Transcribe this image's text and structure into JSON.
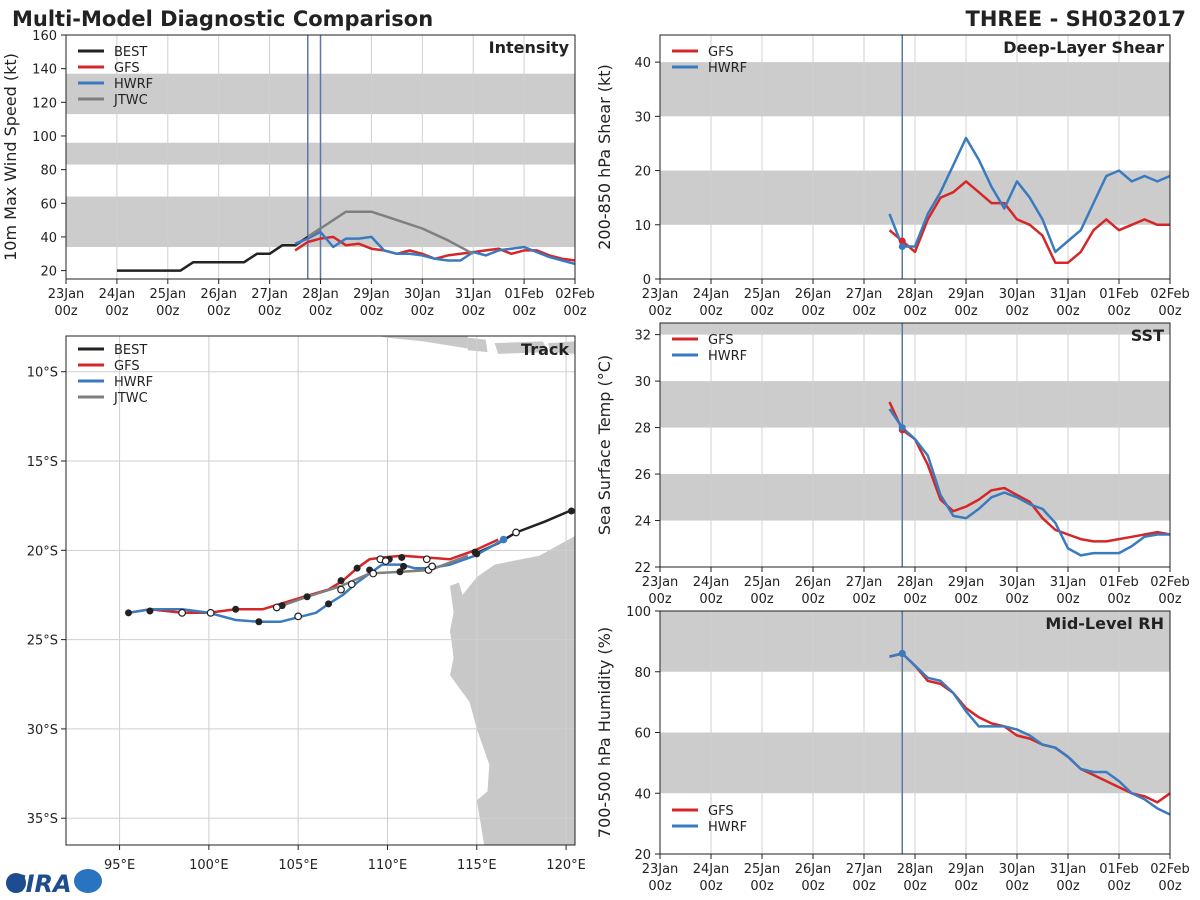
{
  "header": {
    "title": "Multi-Model Diagnostic Comparison",
    "storm": "THREE - SH032017"
  },
  "logo": {
    "text": "CIRA"
  },
  "colors": {
    "best": "#222222",
    "gfs": "#d62728",
    "hwrf": "#3a7bbf",
    "jtwc": "#7f7f7f",
    "band": "#cccccc",
    "land": "#c8c8c8",
    "vline": "#5a77a8"
  },
  "time_axis": {
    "ticks": [
      0,
      1,
      2,
      3,
      4,
      5,
      6,
      7,
      8,
      9,
      10
    ],
    "labels": [
      "23Jan",
      "24Jan",
      "25Jan",
      "26Jan",
      "27Jan",
      "28Jan",
      "29Jan",
      "30Jan",
      "31Jan",
      "01Feb",
      "02Feb"
    ],
    "sublabel": "00z"
  },
  "chart_data": [
    {
      "type": "line",
      "title": "Intensity",
      "ylabel": "10m Max Wind Speed (kt)",
      "xlim": [
        0,
        10
      ],
      "ylim": [
        15,
        160
      ],
      "yticks": [
        20,
        40,
        60,
        80,
        100,
        120,
        140,
        160
      ],
      "bands": [
        [
          34,
          64
        ],
        [
          83,
          96
        ],
        [
          113,
          137
        ]
      ],
      "vlines": [
        4.75,
        5.0
      ],
      "legend": [
        "BEST",
        "GFS",
        "HWRF",
        "JTWC"
      ],
      "series": [
        {
          "name": "BEST",
          "x": [
            1.0,
            1.25,
            1.5,
            1.75,
            2.0,
            2.25,
            2.5,
            2.75,
            3.0,
            3.25,
            3.5,
            3.75,
            4.0,
            4.25,
            4.5,
            4.75,
            5.0
          ],
          "y": [
            20,
            20,
            20,
            20,
            20,
            20,
            25,
            25,
            25,
            25,
            25,
            30,
            30,
            35,
            35,
            40,
            45
          ]
        },
        {
          "name": "GFS",
          "x": [
            4.5,
            4.75,
            5.0,
            5.25,
            5.5,
            5.75,
            6.0,
            6.25,
            6.5,
            6.75,
            7.0,
            7.25,
            7.5,
            7.75,
            8.0,
            8.25,
            8.5,
            8.75,
            9.0,
            9.25,
            9.5,
            9.75,
            10.0
          ],
          "y": [
            32,
            37,
            39,
            40,
            35,
            36,
            33,
            32,
            30,
            32,
            30,
            27,
            29,
            30,
            31,
            32,
            33,
            30,
            32,
            32,
            29,
            27,
            26
          ]
        },
        {
          "name": "HWRF",
          "x": [
            4.5,
            4.75,
            5.0,
            5.25,
            5.5,
            5.75,
            6.0,
            6.25,
            6.5,
            6.75,
            7.0,
            7.25,
            7.5,
            7.75,
            8.0,
            8.25,
            8.5,
            8.75,
            9.0,
            9.25,
            9.5,
            9.75,
            10.0
          ],
          "y": [
            36,
            39,
            43,
            34,
            39,
            39,
            40,
            32,
            30,
            30,
            29,
            27,
            26,
            26,
            31,
            29,
            32,
            33,
            34,
            31,
            28,
            26,
            24
          ]
        },
        {
          "name": "JTWC",
          "x": [
            4.75,
            5.0,
            5.5,
            6.0,
            6.5,
            7.0,
            7.5,
            8.0
          ],
          "y": [
            40,
            45,
            55,
            55,
            50,
            45,
            38,
            30
          ]
        }
      ]
    },
    {
      "type": "line",
      "title": "Deep-Layer Shear",
      "ylabel": "200-850 hPa Shear (kt)",
      "xlim": [
        0,
        10
      ],
      "ylim": [
        0,
        45
      ],
      "yticks": [
        0,
        10,
        20,
        30,
        40
      ],
      "bands": [
        [
          10,
          20
        ],
        [
          30,
          40
        ]
      ],
      "vlines": [
        4.75
      ],
      "legend": [
        "GFS",
        "HWRF"
      ],
      "series": [
        {
          "name": "GFS",
          "x": [
            4.5,
            4.75,
            5.0,
            5.25,
            5.5,
            5.75,
            6.0,
            6.25,
            6.5,
            6.75,
            7.0,
            7.25,
            7.5,
            7.75,
            8.0,
            8.25,
            8.5,
            8.75,
            9.0,
            9.25,
            9.5,
            9.75,
            10.0
          ],
          "y": [
            9,
            7,
            5,
            11,
            15,
            16,
            18,
            16,
            14,
            14,
            11,
            10,
            8,
            3,
            3,
            5,
            9,
            11,
            9,
            10,
            11,
            10,
            10
          ]
        },
        {
          "name": "HWRF",
          "x": [
            4.5,
            4.75,
            5.0,
            5.25,
            5.5,
            5.75,
            6.0,
            6.25,
            6.5,
            6.75,
            7.0,
            7.25,
            7.5,
            7.75,
            8.0,
            8.25,
            8.5,
            8.75,
            9.0,
            9.25,
            9.5,
            9.75,
            10.0
          ],
          "y": [
            12,
            6,
            6,
            12,
            16,
            21,
            26,
            22,
            17,
            13,
            18,
            15,
            11,
            5,
            7,
            9,
            14,
            19,
            20,
            18,
            19,
            18,
            19
          ]
        }
      ]
    },
    {
      "type": "line",
      "title": "SST",
      "ylabel": "Sea Surface Temp (°C)",
      "xlim": [
        0,
        10
      ],
      "ylim": [
        22,
        32.5
      ],
      "yticks": [
        22,
        24,
        26,
        28,
        30,
        32
      ],
      "bands": [
        [
          24,
          26
        ],
        [
          28,
          30
        ],
        [
          32,
          32.5
        ]
      ],
      "vlines": [
        4.75
      ],
      "legend": [
        "GFS",
        "HWRF"
      ],
      "series": [
        {
          "name": "GFS",
          "x": [
            4.5,
            4.75,
            5.0,
            5.25,
            5.5,
            5.75,
            6.0,
            6.25,
            6.5,
            6.75,
            7.0,
            7.25,
            7.5,
            7.75,
            8.0,
            8.25,
            8.5,
            8.75,
            9.0,
            9.25,
            9.5,
            9.75,
            10.0
          ],
          "y": [
            29.1,
            27.9,
            27.5,
            26.4,
            24.9,
            24.4,
            24.6,
            24.9,
            25.3,
            25.4,
            25.1,
            24.8,
            24.1,
            23.6,
            23.4,
            23.2,
            23.1,
            23.1,
            23.2,
            23.3,
            23.4,
            23.5,
            23.4
          ]
        },
        {
          "name": "HWRF",
          "x": [
            4.5,
            4.75,
            5.0,
            5.25,
            5.5,
            5.75,
            6.0,
            6.25,
            6.5,
            6.75,
            7.0,
            7.25,
            7.5,
            7.75,
            8.0,
            8.25,
            8.5,
            8.75,
            9.0,
            9.25,
            9.5,
            9.75,
            10.0
          ],
          "y": [
            28.8,
            28.0,
            27.5,
            26.8,
            25.1,
            24.2,
            24.1,
            24.5,
            25.0,
            25.2,
            25.0,
            24.7,
            24.5,
            23.9,
            22.8,
            22.5,
            22.6,
            22.6,
            22.6,
            22.9,
            23.3,
            23.4,
            23.4
          ]
        }
      ]
    },
    {
      "type": "line",
      "title": "Mid-Level RH",
      "ylabel": "700-500 hPa Humidity (%)",
      "xlim": [
        0,
        10
      ],
      "ylim": [
        20,
        100
      ],
      "yticks": [
        20,
        40,
        60,
        80,
        100
      ],
      "bands": [
        [
          40,
          60
        ],
        [
          80,
          100
        ]
      ],
      "vlines": [
        4.75
      ],
      "legend": [
        "GFS",
        "HWRF"
      ],
      "series": [
        {
          "name": "GFS",
          "x": [
            4.5,
            4.75,
            5.0,
            5.25,
            5.5,
            5.75,
            6.0,
            6.25,
            6.5,
            6.75,
            7.0,
            7.25,
            7.5,
            7.75,
            8.0,
            8.25,
            8.5,
            8.75,
            9.0,
            9.25,
            9.5,
            9.75,
            10.0
          ],
          "y": [
            85,
            86,
            82,
            77,
            76,
            73,
            68,
            65,
            63,
            62,
            59,
            58,
            56,
            55,
            52,
            48,
            46,
            44,
            42,
            40,
            39,
            37,
            40
          ]
        },
        {
          "name": "HWRF",
          "x": [
            4.5,
            4.75,
            5.0,
            5.25,
            5.5,
            5.75,
            6.0,
            6.25,
            6.5,
            6.75,
            7.0,
            7.25,
            7.5,
            7.75,
            8.0,
            8.25,
            8.5,
            8.75,
            9.0,
            9.25,
            9.5,
            9.75,
            10.0
          ],
          "y": [
            85,
            86,
            82,
            78,
            77,
            73,
            67,
            62,
            62,
            62,
            61,
            59,
            56,
            55,
            52,
            48,
            47,
            47,
            44,
            40,
            38,
            35,
            33
          ]
        }
      ]
    },
    {
      "type": "scatter",
      "title": "Track",
      "xlim": [
        92,
        120.5
      ],
      "ylim": [
        -36.5,
        -8
      ],
      "xticks": [
        95,
        100,
        105,
        110,
        115,
        120
      ],
      "xticklabels": [
        "95°E",
        "100°E",
        "105°E",
        "110°E",
        "115°E",
        "120°E"
      ],
      "yticks": [
        -10,
        -15,
        -20,
        -25,
        -30,
        -35
      ],
      "yticklabels": [
        "10°S",
        "15°S",
        "20°S",
        "25°S",
        "30°S",
        "35°S"
      ],
      "legend": [
        "BEST",
        "GFS",
        "HWRF",
        "JTWC"
      ],
      "series": [
        {
          "name": "BEST",
          "lon": [
            120.2,
            118.8,
            117.2,
            116.2,
            114.9
          ],
          "lat": [
            -17.8,
            -18.4,
            -19.0,
            -19.6,
            -20.2
          ]
        },
        {
          "name": "GFS",
          "lon": [
            95.5,
            96.7,
            98.5,
            100.0,
            101.5,
            103.0,
            104.0,
            105.3,
            106.7,
            107.5,
            108.3,
            109.0,
            109.7,
            110.8,
            112.2,
            113.5,
            114.9,
            116.2
          ],
          "lat": [
            -23.5,
            -23.3,
            -23.5,
            -23.5,
            -23.3,
            -23.3,
            -23.0,
            -22.6,
            -22.2,
            -21.7,
            -21.0,
            -20.5,
            -20.4,
            -20.3,
            -20.4,
            -20.5,
            -20.0,
            -19.4
          ]
        },
        {
          "name": "HWRF",
          "lon": [
            95.5,
            96.7,
            98.5,
            100.0,
            101.5,
            102.8,
            104.0,
            105.2,
            106.0,
            106.7,
            107.5,
            108.3,
            109.0,
            109.7,
            110.8,
            111.5,
            112.4,
            113.5,
            114.9,
            115.8,
            116.5
          ],
          "lat": [
            -23.5,
            -23.3,
            -23.3,
            -23.5,
            -23.9,
            -24.0,
            -24.0,
            -23.7,
            -23.5,
            -23.0,
            -22.5,
            -21.8,
            -21.3,
            -20.8,
            -20.8,
            -21.0,
            -21.0,
            -20.8,
            -20.3,
            -19.8,
            -19.4
          ]
        },
        {
          "name": "JTWC",
          "lon": [
            103.8,
            105.5,
            107.4,
            109.0,
            110.8,
            112.4,
            114.5
          ],
          "lat": [
            -23.2,
            -22.6,
            -22.0,
            -21.3,
            -21.2,
            -21.1,
            -20.3
          ]
        }
      ],
      "markers_filled": [
        {
          "lon": 95.5,
          "lat": -23.5
        },
        {
          "lon": 96.7,
          "lat": -23.4
        },
        {
          "lon": 101.5,
          "lat": -23.3
        },
        {
          "lon": 102.8,
          "lat": -24.0
        },
        {
          "lon": 104.1,
          "lat": -23.1
        },
        {
          "lon": 105.5,
          "lat": -22.6
        },
        {
          "lon": 106.7,
          "lat": -23.0
        },
        {
          "lon": 107.4,
          "lat": -21.7
        },
        {
          "lon": 108.3,
          "lat": -21.0
        },
        {
          "lon": 109.0,
          "lat": -21.1
        },
        {
          "lon": 110.1,
          "lat": -20.5
        },
        {
          "lon": 110.8,
          "lat": -20.4
        },
        {
          "lon": 110.9,
          "lat": -20.9
        },
        {
          "lon": 110.7,
          "lat": -21.2
        },
        {
          "lon": 114.9,
          "lat": -20.1
        },
        {
          "lon": 115.0,
          "lat": -20.2
        },
        {
          "lon": 120.3,
          "lat": -17.8
        }
      ],
      "markers_open": [
        {
          "lon": 98.5,
          "lat": -23.5
        },
        {
          "lon": 100.1,
          "lat": -23.5
        },
        {
          "lon": 103.8,
          "lat": -23.2
        },
        {
          "lon": 105.0,
          "lat": -23.7
        },
        {
          "lon": 107.4,
          "lat": -22.2
        },
        {
          "lon": 108.0,
          "lat": -21.9
        },
        {
          "lon": 109.2,
          "lat": -21.3
        },
        {
          "lon": 109.6,
          "lat": -20.5
        },
        {
          "lon": 109.9,
          "lat": -20.6
        },
        {
          "lon": 112.2,
          "lat": -20.5
        },
        {
          "lon": 112.3,
          "lat": -21.1
        },
        {
          "lon": 112.5,
          "lat": -20.9
        },
        {
          "lon": 117.2,
          "lat": -19.0
        }
      ],
      "markers_hwrf": [
        {
          "lon": 116.5,
          "lat": -19.4
        }
      ]
    }
  ]
}
